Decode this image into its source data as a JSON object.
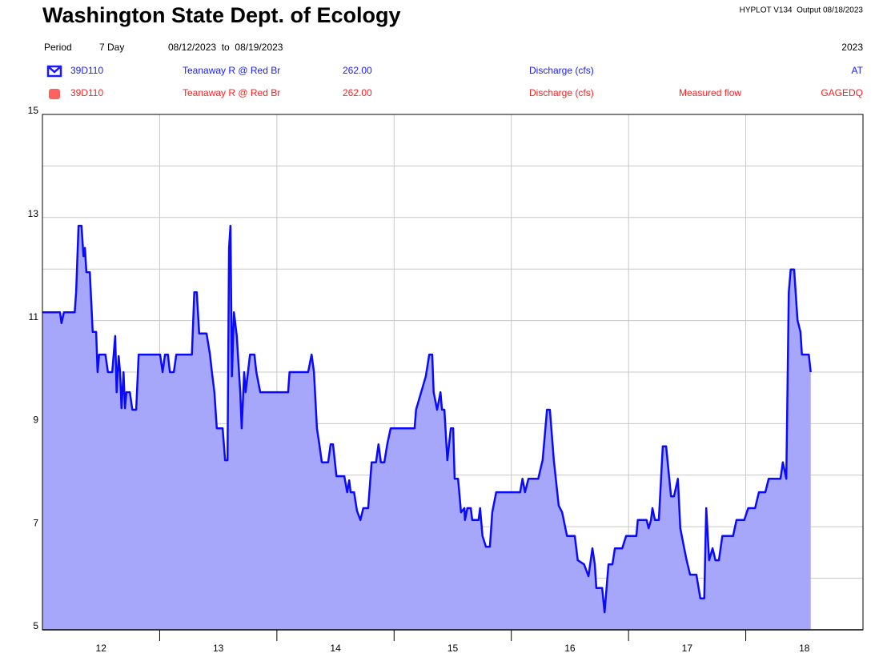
{
  "header": {
    "title": "Washington State Dept. of Ecology",
    "output": "HYPLOT V134  Output 08/18/2023",
    "period_label": "Period",
    "period": "7 Day",
    "range": "08/12/2023  to  08/19/2023",
    "year": "2023",
    "rows": [
      {
        "site": "39D110",
        "name": "Teanaway R @ Red Br",
        "number": "262.00",
        "parameter": "Discharge (cfs)",
        "code": "AT"
      },
      {
        "site": "39D110",
        "name": "Teanaway R @ Red Br",
        "number": "262.00",
        "parameter": "Discharge (cfs)",
        "note": "Measured flow",
        "code": "GAGEDQ"
      }
    ]
  },
  "chart_data": {
    "type": "area",
    "color": "#0a0aff",
    "fill_color": "#a6a6fb",
    "xlim": [
      0,
      168
    ],
    "xticks": [
      {
        "value": 12,
        "label": "12"
      },
      {
        "value": 36,
        "label": "13"
      },
      {
        "value": 60,
        "label": "14"
      },
      {
        "value": 84,
        "label": "15"
      },
      {
        "value": 108,
        "label": "16"
      },
      {
        "value": 132,
        "label": "17"
      },
      {
        "value": 156,
        "label": "18"
      }
    ],
    "xgrid": [
      24,
      48,
      72,
      96,
      120,
      144
    ],
    "ylim": [
      5,
      15
    ],
    "yticks": [
      5,
      7,
      9,
      11,
      13,
      15
    ],
    "ygrid": [
      6,
      8,
      10,
      12,
      14
    ],
    "x": [
      0,
      3.6,
      3.9,
      4.4,
      6.6,
      6.9,
      7.4,
      8.0,
      8.4,
      8.7,
      9.0,
      9.7,
      10.3,
      11.0,
      11.3,
      11.6,
      12.9,
      13.4,
      14.3,
      14.9,
      15.2,
      15.6,
      15.9,
      16.2,
      16.6,
      16.9,
      17.2,
      17.9,
      18.4,
      19.2,
      19.7,
      24.1,
      24.6,
      25.1,
      25.7,
      26.1,
      26.9,
      27.4,
      30.6,
      31.1,
      31.6,
      32.1,
      33.6,
      34.3,
      34.7,
      35.2,
      35.7,
      36.9,
      37.4,
      37.9,
      38.2,
      38.5,
      38.8,
      39.2,
      39.8,
      40.5,
      40.8,
      41.3,
      41.6,
      42.5,
      43.4,
      43.8,
      44.6,
      50.3,
      50.6,
      54.4,
      55.1,
      55.6,
      56.2,
      56.7,
      57.2,
      58.5,
      59.0,
      59.5,
      60.2,
      61.8,
      62.4,
      62.8,
      63.1,
      63.8,
      64.4,
      65.1,
      65.7,
      66.7,
      67.4,
      68.3,
      68.8,
      69.3,
      70.0,
      70.6,
      71.3,
      76.2,
      76.5,
      78.5,
      79.2,
      79.8,
      80.1,
      80.8,
      81.5,
      81.8,
      82.3,
      82.9,
      83.6,
      84.1,
      84.4,
      85.1,
      85.7,
      86.4,
      86.5,
      87.0,
      87.7,
      88.0,
      89.3,
      89.6,
      90.1,
      90.8,
      91.6,
      92.1,
      92.9,
      97.8,
      98.3,
      98.8,
      99.5,
      101.5,
      102.4,
      103.3,
      103.9,
      104.7,
      105.7,
      106.4,
      107.4,
      109.0,
      109.6,
      110.9,
      111.8,
      112.6,
      113.1,
      113.4,
      114.6,
      115.1,
      115.9,
      116.7,
      117.2,
      118.7,
      119.5,
      121.6,
      121.9,
      123.7,
      124.1,
      124.6,
      124.9,
      125.4,
      126.2,
      127.0,
      127.7,
      128.7,
      129.3,
      130.1,
      130.6,
      131.4,
      131.9,
      132.6,
      133.9,
      134.7,
      135.5,
      135.9,
      136.5,
      137.2,
      137.8,
      138.5,
      139.2,
      141.4,
      142.1,
      143.7,
      144.5,
      145.9,
      146.7,
      148.0,
      148.7,
      151.1,
      151.6,
      152.3,
      152.8,
      153.2,
      153.9,
      154.6,
      155.2,
      155.5,
      156.9,
      157.3
    ],
    "values": [
      11.16,
      11.16,
      10.95,
      11.16,
      11.16,
      11.55,
      12.84,
      12.84,
      12.25,
      12.41,
      11.94,
      11.94,
      10.78,
      10.78,
      10.0,
      10.34,
      10.34,
      10.0,
      10.0,
      10.7,
      9.61,
      10.31,
      10.0,
      9.3,
      10.0,
      9.3,
      9.61,
      9.61,
      9.27,
      9.27,
      10.34,
      10.34,
      10.0,
      10.34,
      10.34,
      10.0,
      10.0,
      10.34,
      10.34,
      11.55,
      11.55,
      10.75,
      10.75,
      10.34,
      10.0,
      9.61,
      8.91,
      8.91,
      8.29,
      8.29,
      12.41,
      12.84,
      9.92,
      11.16,
      10.7,
      9.61,
      8.91,
      10.0,
      9.61,
      10.34,
      10.34,
      10.0,
      9.61,
      9.61,
      10.0,
      10.0,
      10.34,
      10.0,
      8.91,
      8.6,
      8.25,
      8.25,
      8.6,
      8.6,
      7.98,
      7.98,
      7.67,
      7.9,
      7.67,
      7.67,
      7.31,
      7.13,
      7.36,
      7.36,
      8.25,
      8.25,
      8.6,
      8.25,
      8.25,
      8.6,
      8.91,
      8.91,
      9.27,
      9.92,
      10.34,
      10.34,
      9.61,
      9.27,
      9.61,
      9.27,
      9.27,
      8.29,
      8.91,
      8.91,
      7.93,
      7.93,
      7.28,
      7.36,
      7.13,
      7.36,
      7.36,
      7.13,
      7.13,
      7.36,
      6.82,
      6.61,
      6.61,
      7.28,
      7.67,
      7.67,
      7.93,
      7.67,
      7.93,
      7.93,
      8.29,
      9.27,
      9.27,
      8.29,
      7.41,
      7.28,
      6.82,
      6.82,
      6.35,
      6.27,
      6.04,
      6.58,
      6.27,
      5.81,
      5.81,
      5.34,
      6.27,
      6.27,
      6.58,
      6.58,
      6.82,
      6.82,
      7.13,
      7.13,
      6.97,
      7.13,
      7.36,
      7.13,
      7.13,
      8.56,
      8.56,
      7.59,
      7.59,
      7.93,
      6.97,
      6.58,
      6.35,
      6.07,
      6.07,
      5.61,
      5.61,
      7.36,
      6.35,
      6.58,
      6.35,
      6.35,
      6.82,
      6.82,
      7.13,
      7.13,
      7.36,
      7.36,
      7.67,
      7.67,
      7.93,
      7.93,
      8.25,
      7.93,
      11.55,
      11.99,
      11.99,
      11.01,
      10.78,
      10.34,
      10.34,
      10.0
    ]
  }
}
